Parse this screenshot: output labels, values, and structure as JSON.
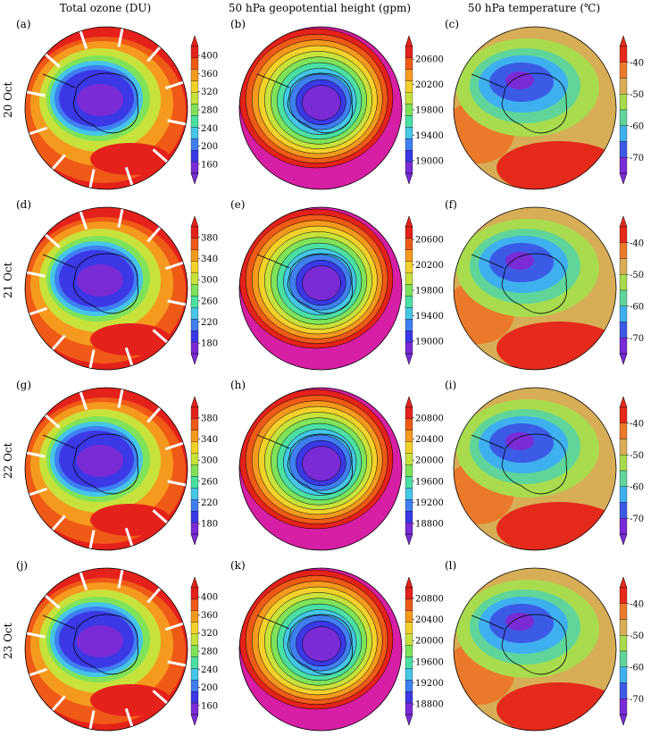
{
  "column_titles": [
    "Total ozone (DU)",
    "50 hPa geopotential height (gpm)",
    "50 hPa temperature (℃)"
  ],
  "row_labels": [
    "20 Oct",
    "21 Oct",
    "22 Oct",
    "23 Oct"
  ],
  "panels": [
    {
      "letter": "(a)",
      "kind": "ozone",
      "ticks": [
        "400",
        "360",
        "320",
        "280",
        "240",
        "200",
        "160"
      ]
    },
    {
      "letter": "(b)",
      "kind": "height",
      "ticks": [
        "20600",
        "20200",
        "19800",
        "19400",
        "19000"
      ]
    },
    {
      "letter": "(c)",
      "kind": "temp",
      "ticks": [
        "-40",
        "-50",
        "-60",
        "-70"
      ]
    },
    {
      "letter": "(d)",
      "kind": "ozone",
      "ticks": [
        "380",
        "340",
        "300",
        "260",
        "220",
        "180"
      ]
    },
    {
      "letter": "(e)",
      "kind": "height",
      "ticks": [
        "20600",
        "20200",
        "19800",
        "19400",
        "19000"
      ]
    },
    {
      "letter": "(f)",
      "kind": "temp",
      "ticks": [
        "-40",
        "-50",
        "-60",
        "-70"
      ]
    },
    {
      "letter": "(g)",
      "kind": "ozone",
      "ticks": [
        "380",
        "340",
        "300",
        "260",
        "220",
        "180"
      ]
    },
    {
      "letter": "(h)",
      "kind": "height",
      "ticks": [
        "20800",
        "20400",
        "20000",
        "19600",
        "19200",
        "18800"
      ]
    },
    {
      "letter": "(i)",
      "kind": "temp",
      "ticks": [
        "-40",
        "-50",
        "-60",
        "-70"
      ]
    },
    {
      "letter": "(j)",
      "kind": "ozone",
      "ticks": [
        "400",
        "360",
        "320",
        "280",
        "240",
        "200",
        "160"
      ]
    },
    {
      "letter": "(k)",
      "kind": "height",
      "ticks": [
        "20800",
        "20400",
        "20000",
        "19600",
        "19200",
        "18800"
      ]
    },
    {
      "letter": "(l)",
      "kind": "temp",
      "ticks": [
        "-40",
        "-50",
        "-60",
        "-70"
      ]
    }
  ],
  "colors": {
    "rainbow": [
      "#7a2bd6",
      "#3b38e6",
      "#3f7ff2",
      "#45c6e6",
      "#4be0a3",
      "#7fe35a",
      "#c8e23c",
      "#f2d22a",
      "#f59a1e",
      "#ef5a17",
      "#e5211b"
    ],
    "temp": [
      "#7a2bd6",
      "#3b5be6",
      "#3fb0ef",
      "#5fd59a",
      "#a8dc4e",
      "#d7ae56",
      "#ea7a2a",
      "#e52a1b"
    ],
    "heightOuter": "#d71fa5"
  }
}
